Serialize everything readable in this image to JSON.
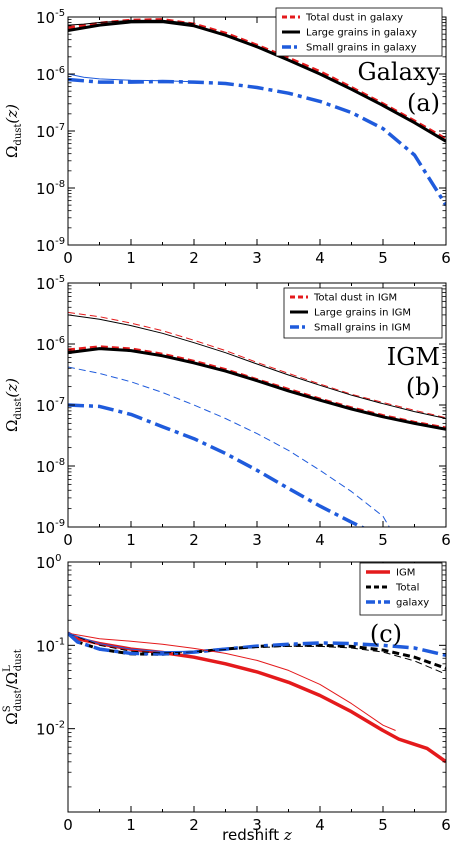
{
  "chart_data": [
    {
      "type": "line",
      "panel_name": "Galaxy",
      "panel_tag": "(a)",
      "ylabel": "Ω_dust(z)",
      "yscale": "log",
      "xlim": [
        0,
        6
      ],
      "ylim_exp": [
        -9,
        -5
      ],
      "ytick_labels": [
        {
          "exp": -9,
          "base": "10",
          "sup": "-9"
        },
        {
          "exp": -8,
          "base": "10",
          "sup": "-8"
        },
        {
          "exp": -7,
          "base": "10",
          "sup": "-7"
        },
        {
          "exp": -6,
          "base": "10",
          "sup": "-6"
        },
        {
          "exp": -5,
          "base": "10",
          "sup": "-5"
        }
      ],
      "xtick_labels": [
        "0",
        "1",
        "2",
        "3",
        "4",
        "5",
        "6"
      ],
      "legend": [
        "Total dust in galaxy",
        "Large grains in galaxy",
        "Small grains in galaxy"
      ],
      "series": [
        {
          "name": "Total dust in galaxy",
          "color": "#e41a1c",
          "style": "dashed",
          "width": 3,
          "x": [
            0,
            0.5,
            1,
            1.5,
            2,
            2.5,
            3,
            3.5,
            4,
            4.5,
            5,
            5.5,
            6
          ],
          "y": [
            6.5e-06,
            7.8e-06,
            8.8e-06,
            9e-06,
            7.5e-06,
            5.2e-06,
            3.2e-06,
            1.9e-06,
            1.1e-06,
            5.8e-07,
            3e-07,
            1.5e-07,
            7.2e-08
          ]
        },
        {
          "name": "Large grains in galaxy",
          "color": "#000000",
          "style": "solid",
          "width": 3,
          "x": [
            0,
            0.5,
            1,
            1.5,
            2,
            2.5,
            3,
            3.5,
            4,
            4.5,
            5,
            5.5,
            6
          ],
          "y": [
            5.8e-06,
            7.2e-06,
            8.2e-06,
            8.3e-06,
            7e-06,
            4.8e-06,
            3e-06,
            1.75e-06,
            1e-06,
            5.4e-07,
            2.8e-07,
            1.4e-07,
            6.6e-08
          ]
        },
        {
          "name": "Small grains in galaxy",
          "color": "#1f5bdc",
          "style": "dashdot",
          "width": 3.5,
          "x": [
            0,
            0.5,
            1,
            1.5,
            2,
            2.5,
            3,
            3.5,
            4,
            4.5,
            5,
            5.5,
            6
          ],
          "y": [
            8e-07,
            7.2e-07,
            7.2e-07,
            7.4e-07,
            7.2e-07,
            6.8e-07,
            5.8e-07,
            4.6e-07,
            3.3e-07,
            2.1e-07,
            1.1e-07,
            3.8e-08,
            5e-09
          ]
        },
        {
          "name": "",
          "color": "#1f5bdc",
          "style": "solid",
          "width": 1,
          "x": [
            0,
            0.25,
            0.5,
            1,
            1.5,
            2
          ],
          "y": [
            1e-06,
            8.8e-07,
            8.2e-07,
            7.8e-07,
            7.6e-07,
            7.3e-07
          ]
        },
        {
          "name": "",
          "color": "#000000",
          "style": "solid",
          "width": 1,
          "x": [
            0,
            0.25,
            0.5,
            1,
            1.5,
            2
          ],
          "y": [
            7.2e-06,
            7.5e-06,
            8e-06,
            8.7e-06,
            8.8e-06,
            7.6e-06
          ]
        }
      ]
    },
    {
      "type": "line",
      "panel_name": "IGM",
      "panel_tag": "(b)",
      "ylabel": "Ω_dust(z)",
      "yscale": "log",
      "xlim": [
        0,
        6
      ],
      "ylim_exp": [
        -9,
        -5
      ],
      "ytick_labels": [
        {
          "exp": -9,
          "base": "10",
          "sup": "-9"
        },
        {
          "exp": -8,
          "base": "10",
          "sup": "-8"
        },
        {
          "exp": -7,
          "base": "10",
          "sup": "-7"
        },
        {
          "exp": -6,
          "base": "10",
          "sup": "-6"
        },
        {
          "exp": -5,
          "base": "10",
          "sup": "-5"
        }
      ],
      "xtick_labels": [
        "0",
        "1",
        "2",
        "3",
        "4",
        "5",
        "6"
      ],
      "legend": [
        "Total dust in IGM",
        "Large grains in IGM",
        "Small grains in IGM"
      ],
      "series": [
        {
          "name": "Total dust in IGM",
          "color": "#e41a1c",
          "style": "dashed",
          "width": 3,
          "x": [
            0,
            0.5,
            1,
            1.5,
            2,
            2.5,
            3,
            3.5,
            4,
            4.5,
            5,
            5.5,
            6
          ],
          "y": [
            8e-07,
            9e-07,
            8.3e-07,
            6.8e-07,
            5.2e-07,
            3.8e-07,
            2.6e-07,
            1.8e-07,
            1.25e-07,
            9e-08,
            6.7e-08,
            5.2e-08,
            4.2e-08
          ]
        },
        {
          "name": "Large grains in IGM",
          "color": "#000000",
          "style": "solid",
          "width": 3,
          "x": [
            0,
            0.5,
            1,
            1.5,
            2,
            2.5,
            3,
            3.5,
            4,
            4.5,
            5,
            5.5,
            6
          ],
          "y": [
            7.2e-07,
            8.4e-07,
            7.8e-07,
            6.4e-07,
            4.9e-07,
            3.6e-07,
            2.5e-07,
            1.7e-07,
            1.2e-07,
            8.6e-08,
            6.4e-08,
            5e-08,
            4e-08
          ]
        },
        {
          "name": "Small grains in IGM",
          "color": "#1f5bdc",
          "style": "dashdot",
          "width": 3.5,
          "x": [
            0,
            0.5,
            1,
            1.5,
            2,
            2.5,
            3,
            3.5,
            4,
            4.5,
            4.8
          ],
          "y": [
            1e-07,
            9.5e-08,
            7e-08,
            4.4e-08,
            2.8e-08,
            1.6e-08,
            8.5e-09,
            4.3e-09,
            2.2e-09,
            1.2e-09,
            8.5e-10
          ]
        },
        {
          "name": "",
          "color": "#e41a1c",
          "style": "dashed",
          "width": 1,
          "x": [
            0,
            0.5,
            1,
            1.5,
            2,
            2.5,
            3,
            3.5,
            4,
            4.5,
            5,
            5.5,
            6
          ],
          "y": [
            3.3e-06,
            2.8e-06,
            2.2e-06,
            1.65e-06,
            1.15e-06,
            7.8e-07,
            5e-07,
            3.3e-07,
            2.2e-07,
            1.5e-07,
            1.1e-07,
            8.2e-08,
            6.2e-08
          ]
        },
        {
          "name": "",
          "color": "#000000",
          "style": "solid",
          "width": 1,
          "x": [
            0,
            0.5,
            1,
            1.5,
            2,
            2.5,
            3,
            3.5,
            4,
            4.5,
            5,
            5.5,
            6
          ],
          "y": [
            3e-06,
            2.55e-06,
            2e-06,
            1.5e-06,
            1.05e-06,
            7.2e-07,
            4.7e-07,
            3.1e-07,
            2.1e-07,
            1.45e-07,
            1.05e-07,
            7.8e-08,
            6e-08
          ]
        },
        {
          "name": "",
          "color": "#1f5bdc",
          "style": "dashed",
          "width": 1,
          "x": [
            0,
            0.5,
            1,
            1.5,
            2,
            2.5,
            3,
            3.5,
            4,
            4.5,
            5,
            5.1
          ],
          "y": [
            4.2e-07,
            3.3e-07,
            2.4e-07,
            1.6e-07,
            1e-07,
            6e-08,
            3.4e-08,
            1.8e-08,
            8.5e-09,
            3.8e-09,
            1.5e-09,
            1e-09
          ]
        }
      ]
    },
    {
      "type": "line",
      "panel_name": "",
      "panel_tag": "(c)",
      "ylabel": "Ω^S_dust/Ω^L_dust",
      "xlabel": "redshift z",
      "yscale": "log",
      "xlim": [
        0,
        6
      ],
      "ylim_exp": [
        -3,
        0
      ],
      "ytick_labels": [
        {
          "exp": -2,
          "base": "10",
          "sup": "-2"
        },
        {
          "exp": -1,
          "base": "10",
          "sup": "-1"
        },
        {
          "exp": 0,
          "base": "10",
          "sup": "0"
        }
      ],
      "xtick_labels": [
        "0",
        "1",
        "2",
        "3",
        "4",
        "5",
        "6"
      ],
      "legend": [
        "IGM",
        "Total",
        "galaxy"
      ],
      "series": [
        {
          "name": "IGM",
          "color": "#e41a1c",
          "style": "solid",
          "width": 3.5,
          "x": [
            0,
            0.15,
            0.5,
            1,
            1.5,
            2,
            2.5,
            3,
            3.5,
            4,
            4.5,
            5,
            5.25,
            5.5,
            5.7,
            6
          ],
          "y": [
            0.14,
            0.12,
            0.105,
            0.09,
            0.082,
            0.072,
            0.06,
            0.048,
            0.036,
            0.025,
            0.016,
            0.0095,
            0.0075,
            0.0065,
            0.0058,
            0.004
          ]
        },
        {
          "name": "Total",
          "color": "#000000",
          "style": "dashed",
          "width": 3,
          "x": [
            0,
            0.15,
            0.5,
            1,
            1.5,
            2,
            2.5,
            3,
            3.5,
            4,
            4.5,
            5,
            5.5,
            6
          ],
          "y": [
            0.14,
            0.11,
            0.09,
            0.079,
            0.078,
            0.083,
            0.09,
            0.097,
            0.1,
            0.1,
            0.097,
            0.088,
            0.072,
            0.053
          ]
        },
        {
          "name": "galaxy",
          "color": "#1f5bdc",
          "style": "dashdot",
          "width": 3.5,
          "x": [
            0,
            0.15,
            0.5,
            1,
            1.5,
            2,
            2.5,
            3,
            3.5,
            4,
            4.5,
            5,
            5.5,
            6
          ],
          "y": [
            0.14,
            0.11,
            0.09,
            0.08,
            0.079,
            0.083,
            0.09,
            0.098,
            0.103,
            0.107,
            0.105,
            0.1,
            0.093,
            0.076
          ]
        },
        {
          "name": "",
          "color": "#e41a1c",
          "style": "solid",
          "width": 1,
          "x": [
            0,
            0.5,
            1,
            1.5,
            2,
            2.5,
            3,
            3.5,
            4,
            4.5,
            5,
            5.2
          ],
          "y": [
            0.14,
            0.12,
            0.112,
            0.103,
            0.092,
            0.08,
            0.066,
            0.05,
            0.034,
            0.02,
            0.011,
            0.0095
          ]
        },
        {
          "name": "",
          "color": "#000000",
          "style": "dashed",
          "width": 1,
          "x": [
            0,
            0.5,
            1,
            1.5,
            2,
            2.5,
            3,
            3.5,
            4,
            4.5,
            5,
            5.5,
            6
          ],
          "y": [
            0.14,
            0.1,
            0.085,
            0.081,
            0.084,
            0.089,
            0.094,
            0.097,
            0.097,
            0.093,
            0.083,
            0.065,
            0.045
          ]
        },
        {
          "name": "",
          "color": "#1f5bdc",
          "style": "solid",
          "width": 1,
          "x": [
            0,
            0.5,
            1,
            1.5,
            2
          ],
          "y": [
            0.14,
            0.105,
            0.09,
            0.084,
            0.085
          ]
        }
      ]
    }
  ]
}
